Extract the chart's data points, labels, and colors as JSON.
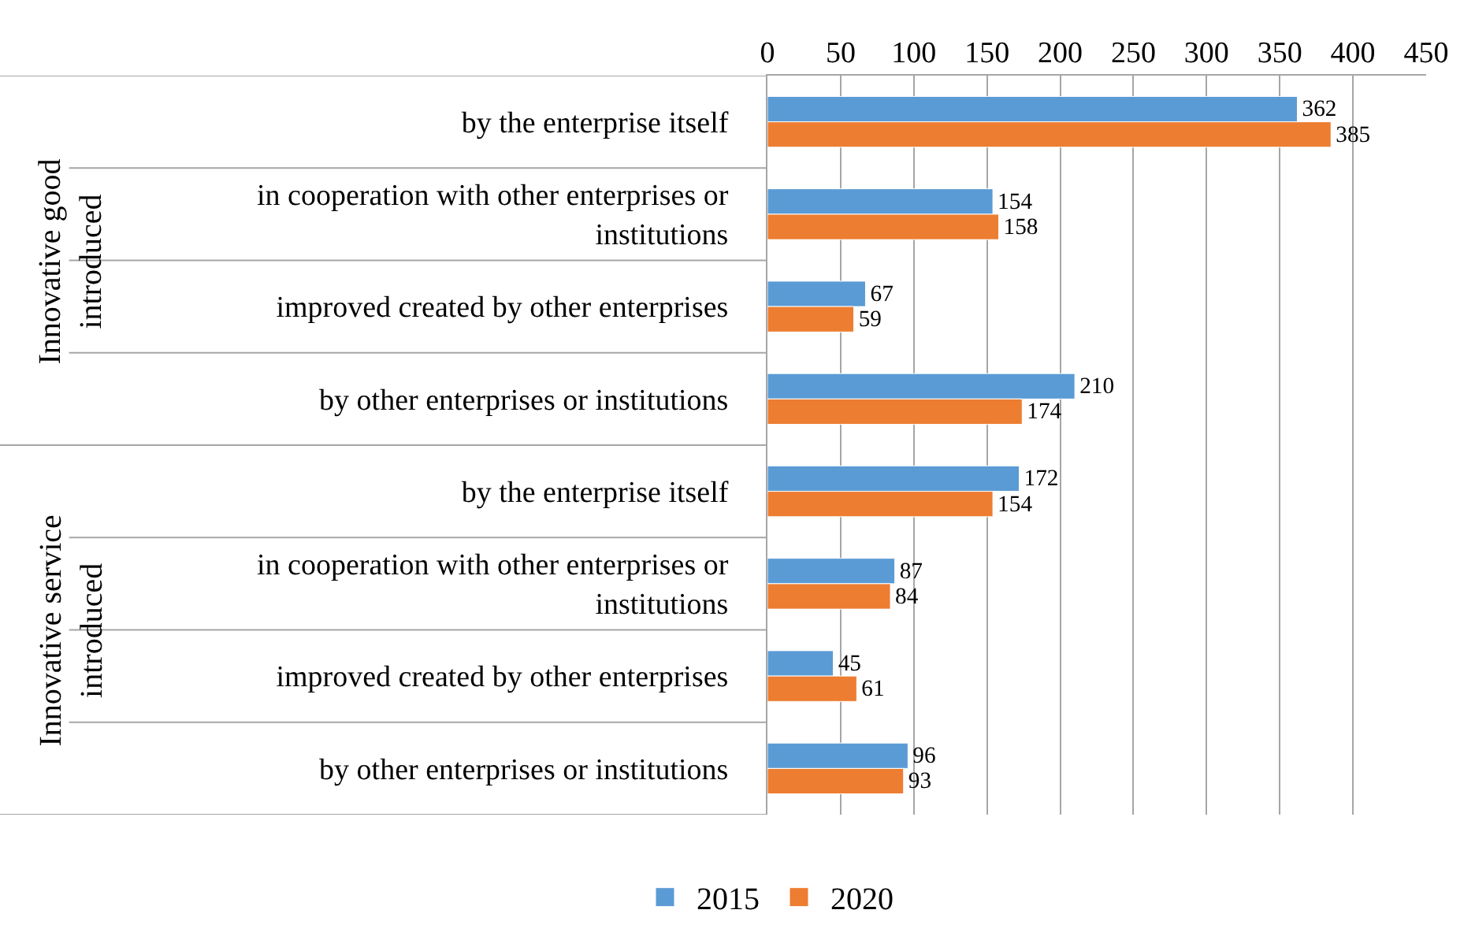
{
  "chart_data": {
    "type": "bar",
    "orientation": "horizontal",
    "categories": [
      "by the enterprise itself",
      "in cooperation with other enterprises or institutions",
      "improved created by other enterprises",
      "by other enterprises or institutions",
      "by the enterprise itself",
      "in cooperation with other enterprises or institutions",
      "improved created by other enterprises",
      "by other enterprises or institutions"
    ],
    "series": [
      {
        "name": "2015",
        "color": "#5b9bd5",
        "values": [
          362,
          154,
          67,
          210,
          172,
          87,
          45,
          96
        ]
      },
      {
        "name": "2020",
        "color": "#ed7d31",
        "values": [
          385,
          158,
          59,
          174,
          154,
          84,
          61,
          93
        ]
      }
    ],
    "annotations": [
      "Innovative good introduced",
      "Innovative service introduced"
    ],
    "xlim": [
      0,
      450
    ],
    "xticks": [
      0,
      50,
      100,
      150,
      200,
      250,
      300,
      350,
      400,
      450
    ],
    "grid": "x",
    "legend": "bottom",
    "data_labels": true
  }
}
